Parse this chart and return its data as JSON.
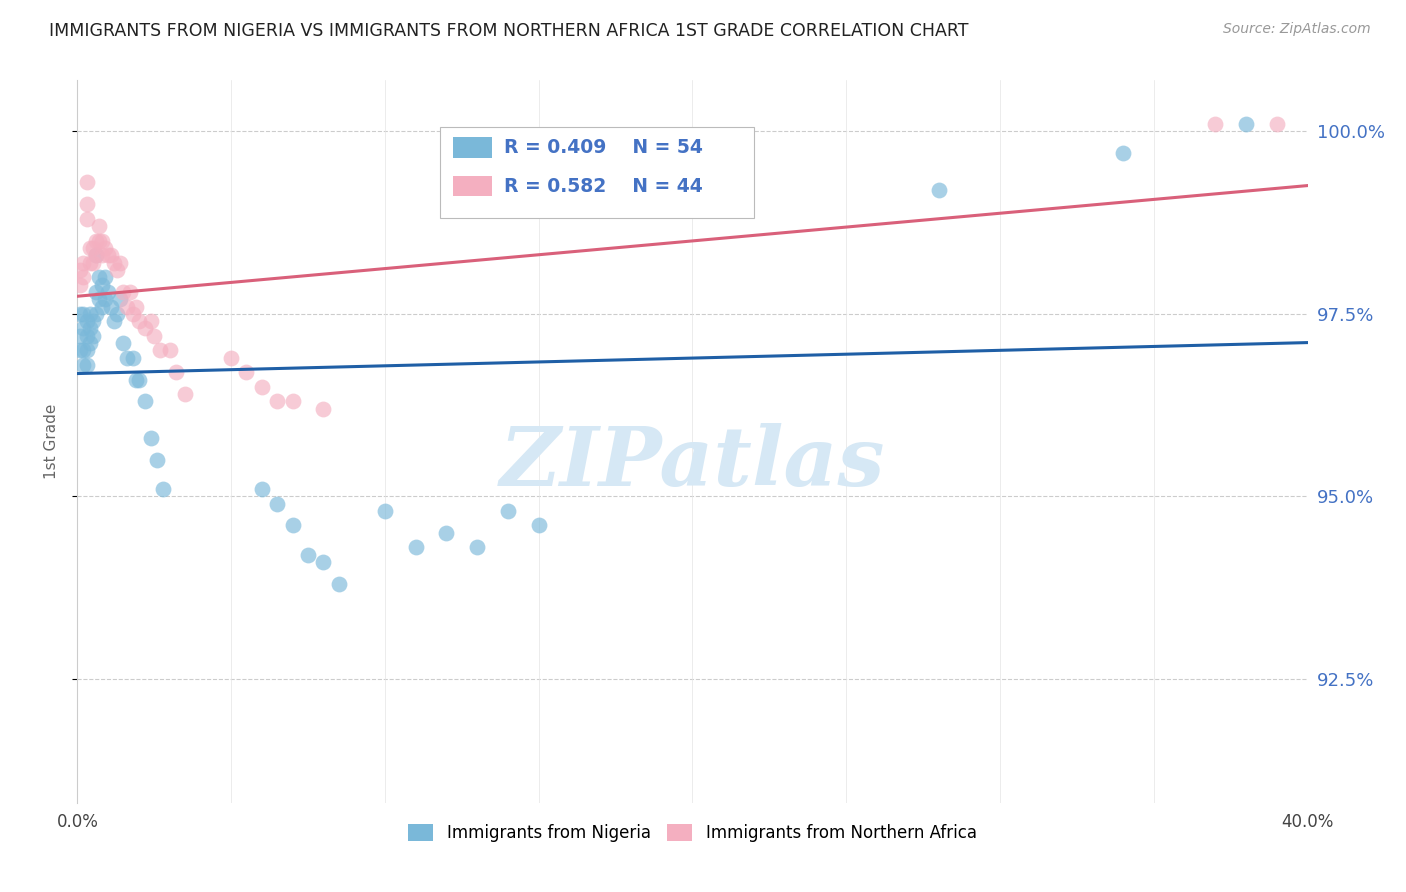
{
  "title": "IMMIGRANTS FROM NIGERIA VS IMMIGRANTS FROM NORTHERN AFRICA 1ST GRADE CORRELATION CHART",
  "source": "Source: ZipAtlas.com",
  "ylabel": "1st Grade",
  "ytick_labels": [
    "100.0%",
    "97.5%",
    "95.0%",
    "92.5%"
  ],
  "ytick_values": [
    1.0,
    0.975,
    0.95,
    0.925
  ],
  "xlim": [
    0.0,
    0.4
  ],
  "ylim": [
    0.908,
    1.007
  ],
  "legend1_label": "Immigrants from Nigeria",
  "legend2_label": "Immigrants from Northern Africa",
  "R_nigeria": 0.409,
  "N_nigeria": 54,
  "R_northern_africa": 0.582,
  "N_northern_africa": 44,
  "color_nigeria": "#7ab8d9",
  "color_northern_africa": "#f4afc0",
  "line_color_nigeria": "#1f5fa6",
  "line_color_northern_africa": "#d9607a",
  "nigeria_x": [
    0.001,
    0.001,
    0.001,
    0.002,
    0.002,
    0.002,
    0.002,
    0.003,
    0.003,
    0.003,
    0.003,
    0.004,
    0.004,
    0.004,
    0.005,
    0.005,
    0.006,
    0.006,
    0.006,
    0.007,
    0.007,
    0.008,
    0.008,
    0.009,
    0.009,
    0.01,
    0.011,
    0.012,
    0.013,
    0.014,
    0.015,
    0.016,
    0.018,
    0.019,
    0.02,
    0.022,
    0.024,
    0.026,
    0.028,
    0.06,
    0.065,
    0.07,
    0.075,
    0.08,
    0.085,
    0.1,
    0.11,
    0.12,
    0.13,
    0.14,
    0.15,
    0.28,
    0.34,
    0.38
  ],
  "nigeria_y": [
    0.975,
    0.972,
    0.97,
    0.975,
    0.973,
    0.97,
    0.968,
    0.974,
    0.972,
    0.97,
    0.968,
    0.975,
    0.973,
    0.971,
    0.974,
    0.972,
    0.983,
    0.978,
    0.975,
    0.98,
    0.977,
    0.979,
    0.976,
    0.98,
    0.977,
    0.978,
    0.976,
    0.974,
    0.975,
    0.977,
    0.971,
    0.969,
    0.969,
    0.966,
    0.966,
    0.963,
    0.958,
    0.955,
    0.951,
    0.951,
    0.949,
    0.946,
    0.942,
    0.941,
    0.938,
    0.948,
    0.943,
    0.945,
    0.943,
    0.948,
    0.946,
    0.992,
    0.997,
    1.001
  ],
  "northern_africa_x": [
    0.001,
    0.001,
    0.002,
    0.002,
    0.003,
    0.003,
    0.003,
    0.004,
    0.004,
    0.005,
    0.005,
    0.006,
    0.006,
    0.007,
    0.007,
    0.008,
    0.008,
    0.009,
    0.01,
    0.011,
    0.012,
    0.013,
    0.014,
    0.015,
    0.016,
    0.017,
    0.018,
    0.019,
    0.02,
    0.022,
    0.024,
    0.025,
    0.027,
    0.03,
    0.032,
    0.035,
    0.05,
    0.055,
    0.06,
    0.065,
    0.07,
    0.08,
    0.37,
    0.39
  ],
  "northern_africa_y": [
    0.981,
    0.979,
    0.982,
    0.98,
    0.993,
    0.99,
    0.988,
    0.984,
    0.982,
    0.984,
    0.982,
    0.985,
    0.983,
    0.987,
    0.985,
    0.985,
    0.983,
    0.984,
    0.983,
    0.983,
    0.982,
    0.981,
    0.982,
    0.978,
    0.976,
    0.978,
    0.975,
    0.976,
    0.974,
    0.973,
    0.974,
    0.972,
    0.97,
    0.97,
    0.967,
    0.964,
    0.969,
    0.967,
    0.965,
    0.963,
    0.963,
    0.962,
    1.001,
    1.001
  ],
  "background_color": "#ffffff",
  "grid_color": "#cccccc",
  "title_color": "#222222",
  "watermark_text": "ZIPatlas",
  "watermark_color": "#d6e8f5"
}
